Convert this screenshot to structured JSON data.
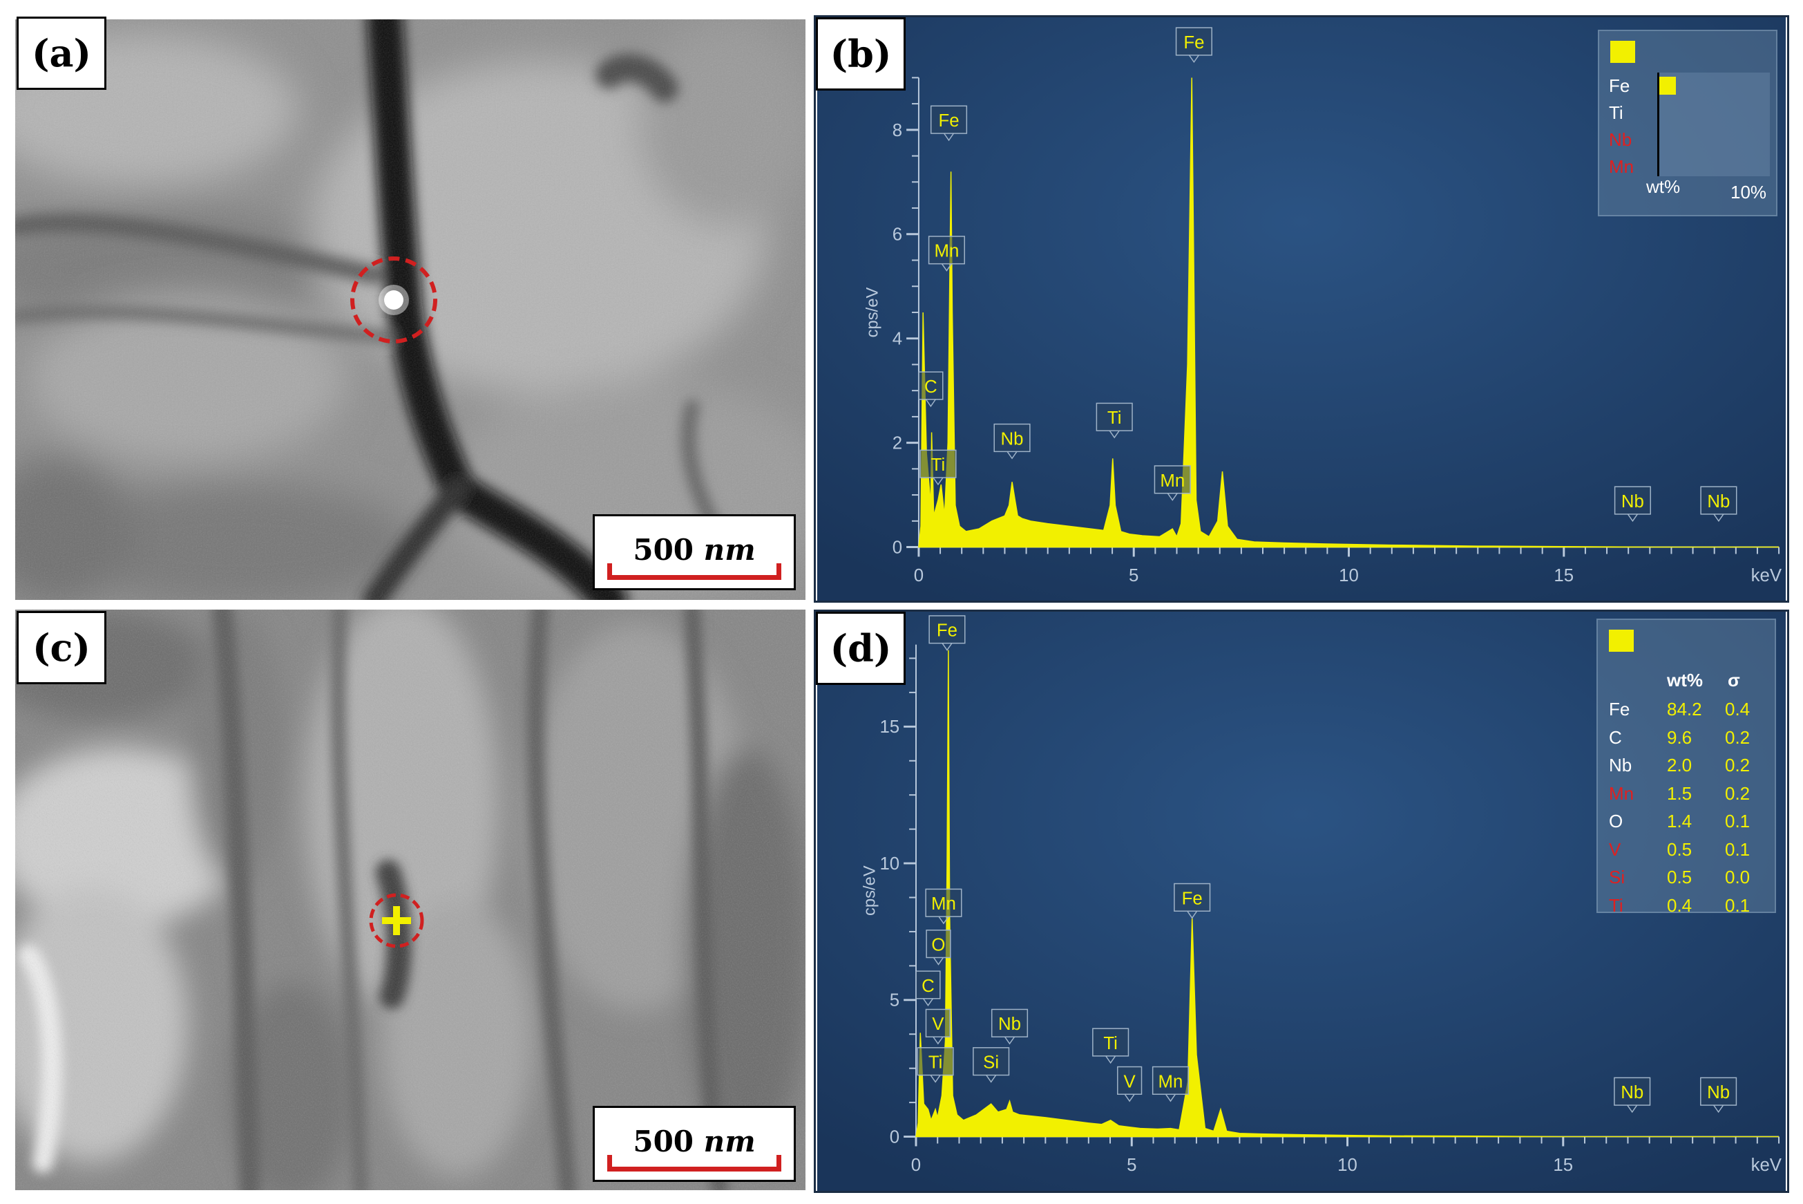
{
  "panels": {
    "a": {
      "label": "(a)",
      "scale": {
        "value": "500",
        "unit": "nm"
      }
    },
    "b": {
      "label": "(b)"
    },
    "c": {
      "label": "(c)",
      "scale": {
        "value": "500",
        "unit": "nm"
      }
    },
    "d": {
      "label": "(d)"
    }
  },
  "colors": {
    "spectrum": "#f2f000",
    "eds_background": "#1f3f67",
    "marker_circle": "#d02020",
    "red_element": "#e02020"
  },
  "chart_data": [
    {
      "panel": "b",
      "type": "line",
      "xlabel": "keV",
      "ylabel": "cps/eV",
      "xlim": [
        0,
        20
      ],
      "ylim": [
        0,
        9
      ],
      "xticks": [
        0,
        5,
        10,
        15
      ],
      "yticks": [
        0,
        2,
        4,
        6,
        8
      ],
      "series": [
        {
          "x": [
            0,
            0.05,
            0.1,
            0.18,
            0.28,
            0.3,
            0.35,
            0.45,
            0.52,
            0.6,
            0.68,
            0.72,
            0.75,
            0.78,
            0.85,
            0.95,
            1.1,
            1.4,
            1.7,
            2.0,
            2.1,
            2.17,
            2.24,
            2.3,
            2.4,
            2.6,
            3.0,
            3.5,
            4.0,
            4.3,
            4.45,
            4.51,
            4.57,
            4.7,
            4.9,
            5.2,
            5.6,
            5.9,
            6.0,
            6.1,
            6.25,
            6.35,
            6.4,
            6.45,
            6.55,
            6.75,
            6.95,
            7.06,
            7.18,
            7.4,
            7.8,
            8.5,
            9.5,
            11,
            13,
            15,
            17,
            20
          ],
          "y": [
            0,
            0.4,
            4.5,
            1.8,
            0.8,
            2.2,
            0.6,
            0.9,
            1.2,
            0.6,
            2.0,
            5.0,
            7.2,
            4.5,
            0.8,
            0.4,
            0.3,
            0.35,
            0.5,
            0.6,
            0.8,
            1.25,
            0.9,
            0.6,
            0.55,
            0.5,
            0.45,
            0.4,
            0.35,
            0.32,
            0.8,
            1.7,
            0.8,
            0.3,
            0.25,
            0.22,
            0.2,
            0.35,
            0.2,
            0.45,
            3.5,
            9.3,
            5.0,
            0.9,
            0.3,
            0.2,
            0.5,
            1.45,
            0.4,
            0.15,
            0.1,
            0.08,
            0.06,
            0.04,
            0.02,
            0.01,
            0,
            0
          ]
        }
      ],
      "peaks": [
        {
          "label": "Fe",
          "x": 0.72,
          "y": 7.2,
          "lx": 0.7,
          "ly": 7.8,
          "red": false
        },
        {
          "label": "Mn",
          "x": 0.64,
          "y": 5.3,
          "lx": 0.65,
          "ly": 5.3,
          "red": false
        },
        {
          "label": "C",
          "x": 0.28,
          "y": 2.2,
          "lx": 0.28,
          "ly": 2.7,
          "red": false
        },
        {
          "label": "Ti",
          "x": 0.45,
          "y": 0.9,
          "lx": 0.45,
          "ly": 1.2,
          "red": false
        },
        {
          "label": "Nb",
          "x": 2.17,
          "y": 1.25,
          "lx": 2.17,
          "ly": 1.7,
          "red": false
        },
        {
          "label": "Ti",
          "x": 4.51,
          "y": 1.7,
          "lx": 4.55,
          "ly": 2.1,
          "red": false
        },
        {
          "label": "Mn",
          "x": 5.9,
          "y": 0.35,
          "lx": 5.9,
          "ly": 0.9,
          "red": false
        },
        {
          "label": "Fe",
          "x": 6.4,
          "y": 9.3,
          "lx": 6.4,
          "ly": 9.3,
          "red": false
        },
        {
          "label": "Nb",
          "x": 16.6,
          "y": 0,
          "lx": 16.6,
          "ly": 0.5,
          "red": false
        },
        {
          "label": "Nb",
          "x": 18.6,
          "y": 0,
          "lx": 18.6,
          "ly": 0.5,
          "red": false
        }
      ],
      "legend": {
        "placement": "top-right",
        "axis_label": "wt%",
        "axis_max": "10%",
        "rows": [
          {
            "element": "Fe",
            "red": false,
            "bar": 1.0
          },
          {
            "element": "Ti",
            "red": false,
            "bar": 0
          },
          {
            "element": "Nb",
            "red": true,
            "bar": 0
          },
          {
            "element": "Mn",
            "red": true,
            "bar": 0
          }
        ]
      }
    },
    {
      "panel": "d",
      "type": "line",
      "xlabel": "keV",
      "ylabel": "cps/eV",
      "xlim": [
        0,
        20
      ],
      "ylim": [
        0,
        18
      ],
      "xticks": [
        0,
        5,
        10,
        15
      ],
      "yticks": [
        0,
        5,
        10,
        15
      ],
      "series": [
        {
          "x": [
            0,
            0.05,
            0.1,
            0.18,
            0.28,
            0.35,
            0.45,
            0.5,
            0.6,
            0.68,
            0.72,
            0.75,
            0.78,
            0.85,
            0.95,
            1.1,
            1.4,
            1.74,
            1.9,
            2.1,
            2.17,
            2.24,
            2.4,
            2.7,
            3.0,
            3.5,
            4.0,
            4.3,
            4.51,
            4.7,
            4.95,
            5.2,
            5.6,
            5.9,
            6.1,
            6.3,
            6.4,
            6.5,
            6.7,
            6.9,
            7.06,
            7.2,
            7.5,
            8,
            9,
            10,
            11,
            13,
            15,
            20
          ],
          "y": [
            0,
            0.5,
            3.8,
            1.2,
            1.0,
            0.6,
            1.0,
            0.7,
            1.5,
            3.5,
            10.0,
            17.8,
            8.0,
            1.5,
            0.8,
            0.6,
            0.8,
            1.2,
            0.9,
            1.0,
            1.3,
            0.9,
            0.8,
            0.75,
            0.7,
            0.6,
            0.5,
            0.45,
            0.6,
            0.4,
            0.35,
            0.3,
            0.28,
            0.3,
            0.25,
            2.0,
            8.0,
            3.0,
            0.3,
            0.2,
            1.0,
            0.2,
            0.12,
            0.1,
            0.07,
            0.05,
            0.03,
            0.02,
            0,
            0
          ]
        }
      ],
      "peaks": [
        {
          "label": "Fe",
          "x": 0.72,
          "y": 17.8,
          "lx": 0.72,
          "ly": 17.8,
          "red": false
        },
        {
          "label": "Mn",
          "x": 0.64,
          "y": 7.5,
          "lx": 0.64,
          "ly": 7.8,
          "red": false
        },
        {
          "label": "O",
          "x": 0.52,
          "y": 6.3,
          "lx": 0.52,
          "ly": 6.3,
          "red": false
        },
        {
          "label": "C",
          "x": 0.28,
          "y": 4.8,
          "lx": 0.28,
          "ly": 4.8,
          "red": false
        },
        {
          "label": "V",
          "x": 0.51,
          "y": 3.4,
          "lx": 0.51,
          "ly": 3.4,
          "red": false
        },
        {
          "label": "Ti",
          "x": 0.45,
          "y": 2.0,
          "lx": 0.45,
          "ly": 2.0,
          "red": false
        },
        {
          "label": "Si",
          "x": 1.74,
          "y": 1.2,
          "lx": 1.74,
          "ly": 2.0,
          "red": false
        },
        {
          "label": "Nb",
          "x": 2.17,
          "y": 1.3,
          "lx": 2.17,
          "ly": 3.4,
          "red": false
        },
        {
          "label": "Ti",
          "x": 4.51,
          "y": 0.6,
          "lx": 4.51,
          "ly": 2.7,
          "red": false
        },
        {
          "label": "V",
          "x": 4.95,
          "y": 0.35,
          "lx": 4.95,
          "ly": 1.3,
          "red": false
        },
        {
          "label": "Mn",
          "x": 5.9,
          "y": 0.3,
          "lx": 5.9,
          "ly": 1.3,
          "red": false
        },
        {
          "label": "Fe",
          "x": 6.4,
          "y": 8.0,
          "lx": 6.4,
          "ly": 8.0,
          "red": false
        },
        {
          "label": "Nb",
          "x": 16.6,
          "y": 0,
          "lx": 16.6,
          "ly": 0.9,
          "red": false
        },
        {
          "label": "Nb",
          "x": 18.6,
          "y": 0,
          "lx": 18.6,
          "ly": 0.9,
          "red": false
        }
      ],
      "legend": {
        "placement": "top-right",
        "headers": [
          "wt%",
          "σ"
        ],
        "rows": [
          {
            "element": "Fe",
            "red": false,
            "wt": "84.2",
            "sigma": "0.4"
          },
          {
            "element": "C",
            "red": false,
            "wt": "9.6",
            "sigma": "0.2"
          },
          {
            "element": "Nb",
            "red": false,
            "wt": "2.0",
            "sigma": "0.2"
          },
          {
            "element": "Mn",
            "red": true,
            "wt": "1.5",
            "sigma": "0.2"
          },
          {
            "element": "O",
            "red": false,
            "wt": "1.4",
            "sigma": "0.1"
          },
          {
            "element": "V",
            "red": true,
            "wt": "0.5",
            "sigma": "0.1"
          },
          {
            "element": "Si",
            "red": true,
            "wt": "0.5",
            "sigma": "0.0"
          },
          {
            "element": "Ti",
            "red": true,
            "wt": "0.4",
            "sigma": "0.1"
          }
        ]
      }
    }
  ]
}
